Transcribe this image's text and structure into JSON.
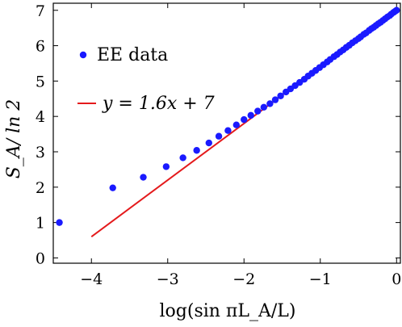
{
  "chart_data": {
    "type": "scatter",
    "title": "",
    "xlabel": "log(sin πL_A/L)",
    "ylabel": "S_A/ ln 2",
    "xlim": [
      -4.5,
      0.05
    ],
    "ylim": [
      -0.15,
      7.2
    ],
    "x_ticks": [
      -4,
      -3,
      -2,
      -1,
      0
    ],
    "x_tick_labels": [
      "−4",
      "−3",
      "−2",
      "−1",
      "0"
    ],
    "y_ticks": [
      0,
      1,
      2,
      3,
      4,
      5,
      6,
      7
    ],
    "y_tick_labels": [
      "0",
      "1",
      "2",
      "3",
      "4",
      "5",
      "6",
      "7"
    ],
    "grid": false,
    "legend_position": "left",
    "series": [
      {
        "name": "EE data",
        "kind": "points",
        "color": "#1a1aff",
        "x": [
          -4.42,
          -3.72,
          -3.32,
          -3.02,
          -2.8,
          -2.62,
          -2.46,
          -2.33,
          -2.21,
          -2.1,
          -2.0,
          -1.91,
          -1.82,
          -1.74,
          -1.66,
          -1.59,
          -1.52,
          -1.45,
          -1.39,
          -1.33,
          -1.27,
          -1.21,
          -1.16,
          -1.11,
          -1.06,
          -1.01,
          -0.96,
          -0.91,
          -0.87,
          -0.82,
          -0.78,
          -0.74,
          -0.7,
          -0.66,
          -0.62,
          -0.58,
          -0.54,
          -0.5,
          -0.47,
          -0.43,
          -0.4,
          -0.36,
          -0.33,
          -0.3,
          -0.27,
          -0.24,
          -0.21,
          -0.18,
          -0.15,
          -0.12,
          -0.09,
          -0.07,
          -0.04,
          -0.02,
          0.0
        ],
        "y": [
          1.0,
          1.98,
          2.28,
          2.58,
          2.83,
          3.04,
          3.25,
          3.44,
          3.6,
          3.76,
          3.91,
          4.03,
          4.15,
          4.26,
          4.36,
          4.47,
          4.58,
          4.69,
          4.78,
          4.87,
          4.96,
          5.05,
          5.14,
          5.22,
          5.3,
          5.38,
          5.46,
          5.54,
          5.61,
          5.69,
          5.75,
          5.82,
          5.88,
          5.95,
          6.01,
          6.08,
          6.14,
          6.2,
          6.25,
          6.32,
          6.36,
          6.43,
          6.48,
          6.52,
          6.57,
          6.62,
          6.66,
          6.71,
          6.76,
          6.81,
          6.85,
          6.89,
          6.94,
          6.97,
          7.0
        ]
      },
      {
        "name": "y = 1.6x + 7",
        "kind": "line",
        "color": "#e41a1c",
        "x": [
          -4.0,
          0.0
        ],
        "y": [
          0.6,
          7.0
        ]
      }
    ]
  }
}
